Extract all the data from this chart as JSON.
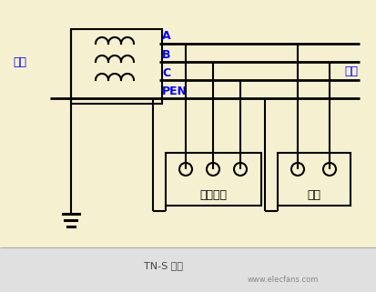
{
  "bg_color": "#f5f0d0",
  "footer_color": "#e0e0e0",
  "line_color": "#000000",
  "blue_color": "#0000ff",
  "title_text": "TN-S 系统",
  "label_power": "电源",
  "label_load": "负荷",
  "label_pen": "PEN",
  "label_A": "A",
  "label_B": "B",
  "label_C": "C",
  "label_3phase": "三相设备",
  "label_1phase": "单相",
  "figsize": [
    4.14,
    3.21
  ],
  "dpi": 100
}
